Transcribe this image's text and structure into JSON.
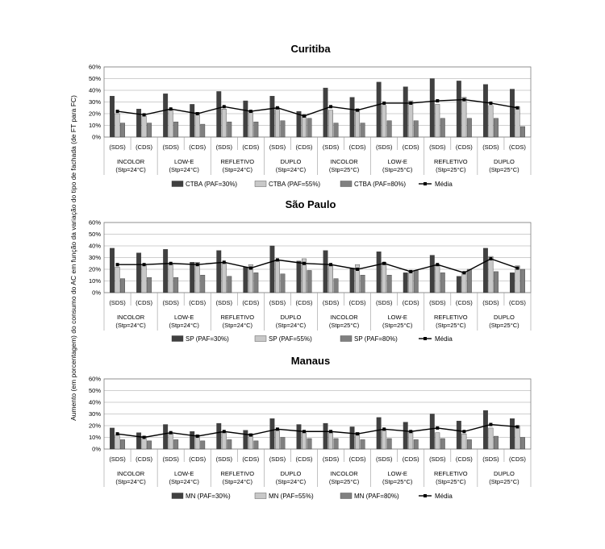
{
  "figure": {
    "ylabel": "Aumento (em porcentagem) do consumo do AC em função da variação do tipo de fachada (de FT para FC)"
  },
  "group_labels": [
    [
      "INCOLOR",
      "(Stp=24°C)"
    ],
    [
      "LOW-E",
      "(Stp=24°C)"
    ],
    [
      "REFLETIVO",
      "(Stp=24°C)"
    ],
    [
      "DUPLO",
      "(Stp=24°C)"
    ],
    [
      "INCOLOR",
      "(Stp=25°C)"
    ],
    [
      "LOW-E",
      "(Stp=25°C)"
    ],
    [
      "REFLETIVO",
      "(Stp=25°C)"
    ],
    [
      "DUPLO",
      "(Stp=25°C)"
    ]
  ],
  "subcategory_labels": [
    "(SDS)",
    "(CDS)"
  ],
  "colors": {
    "paf30": "#404040",
    "paf55": "#c8c8c8",
    "paf80": "#808080",
    "media": "#000000"
  },
  "chart_data": [
    {
      "type": "bar",
      "title": "Curitiba",
      "ylim": [
        0,
        60
      ],
      "yticks": [
        "0%",
        "10%",
        "20%",
        "30%",
        "40%",
        "50%",
        "60%"
      ],
      "categories": [
        "(SDS)",
        "(CDS)",
        "(SDS)",
        "(CDS)",
        "(SDS)",
        "(CDS)",
        "(SDS)",
        "(CDS)",
        "(SDS)",
        "(CDS)",
        "(SDS)",
        "(CDS)",
        "(SDS)",
        "(CDS)",
        "(SDS)",
        "(CDS)"
      ],
      "series": [
        {
          "name": "CTBA (PAF=30%)",
          "values": [
            35,
            24,
            37,
            28,
            39,
            31,
            35,
            22,
            42,
            34,
            47,
            43,
            50,
            48,
            45,
            41
          ]
        },
        {
          "name": "CTBA (PAF=55%)",
          "values": [
            20,
            18,
            24,
            21,
            24,
            22,
            25,
            19,
            23,
            24,
            27,
            31,
            28,
            34,
            27,
            26
          ]
        },
        {
          "name": "CTBA (PAF=80%)",
          "values": [
            12,
            12,
            13,
            11,
            13,
            13,
            14,
            16,
            12,
            12,
            14,
            14,
            16,
            16,
            16,
            9
          ]
        },
        {
          "name": "Média",
          "kind": "line",
          "values": [
            22,
            19,
            24,
            20,
            26,
            22,
            25,
            18,
            26,
            23,
            29,
            29,
            31,
            32,
            29,
            25
          ]
        }
      ]
    },
    {
      "type": "bar",
      "title": "São Paulo",
      "ylim": [
        0,
        60
      ],
      "yticks": [
        "0%",
        "10%",
        "20%",
        "30%",
        "40%",
        "50%",
        "60%"
      ],
      "categories": [
        "(SDS)",
        "(CDS)",
        "(SDS)",
        "(CDS)",
        "(SDS)",
        "(CDS)",
        "(SDS)",
        "(CDS)",
        "(SDS)",
        "(CDS)",
        "(SDS)",
        "(CDS)",
        "(SDS)",
        "(CDS)",
        "(SDS)",
        "(CDS)"
      ],
      "series": [
        {
          "name": "SP (PAF=30%)",
          "values": [
            38,
            34,
            37,
            26,
            36,
            22,
            40,
            27,
            36,
            21,
            35,
            17,
            32,
            14,
            38,
            17
          ]
        },
        {
          "name": "SP (PAF=55%)",
          "values": [
            22,
            24,
            24,
            26,
            26,
            24,
            28,
            29,
            24,
            24,
            26,
            18,
            24,
            17,
            31,
            23
          ]
        },
        {
          "name": "SP (PAF=80%)",
          "values": [
            12,
            13,
            13,
            15,
            14,
            17,
            16,
            19,
            12,
            15,
            15,
            19,
            17,
            20,
            18,
            20
          ]
        },
        {
          "name": "Média",
          "kind": "line",
          "values": [
            24,
            24,
            25,
            24,
            26,
            21,
            28,
            25,
            24,
            20,
            25,
            18,
            24,
            17,
            29,
            21
          ]
        }
      ]
    },
    {
      "type": "bar",
      "title": "Manaus",
      "ylim": [
        0,
        60
      ],
      "yticks": [
        "0%",
        "10%",
        "20%",
        "30%",
        "40%",
        "50%",
        "60%"
      ],
      "categories": [
        "(SDS)",
        "(CDS)",
        "(SDS)",
        "(CDS)",
        "(SDS)",
        "(CDS)",
        "(SDS)",
        "(CDS)",
        "(SDS)",
        "(CDS)",
        "(SDS)",
        "(CDS)",
        "(SDS)",
        "(CDS)",
        "(SDS)",
        "(CDS)"
      ],
      "series": [
        {
          "name": "MN (PAF=30%)",
          "values": [
            18,
            14,
            21,
            15,
            22,
            16,
            26,
            21,
            22,
            19,
            27,
            23,
            30,
            24,
            33,
            26
          ]
        },
        {
          "name": "MN (PAF=55%)",
          "values": [
            12,
            11,
            13,
            12,
            15,
            13,
            17,
            14,
            15,
            14,
            17,
            15,
            14,
            13,
            18,
            20
          ]
        },
        {
          "name": "MN (PAF=80%)",
          "values": [
            8,
            7,
            8,
            7,
            8,
            7,
            10,
            9,
            9,
            8,
            9,
            8,
            9,
            8,
            11,
            10
          ]
        },
        {
          "name": "Média",
          "kind": "line",
          "values": [
            13,
            10,
            14,
            11,
            15,
            12,
            17,
            15,
            15,
            13,
            17,
            15,
            18,
            15,
            21,
            19
          ]
        }
      ]
    }
  ]
}
